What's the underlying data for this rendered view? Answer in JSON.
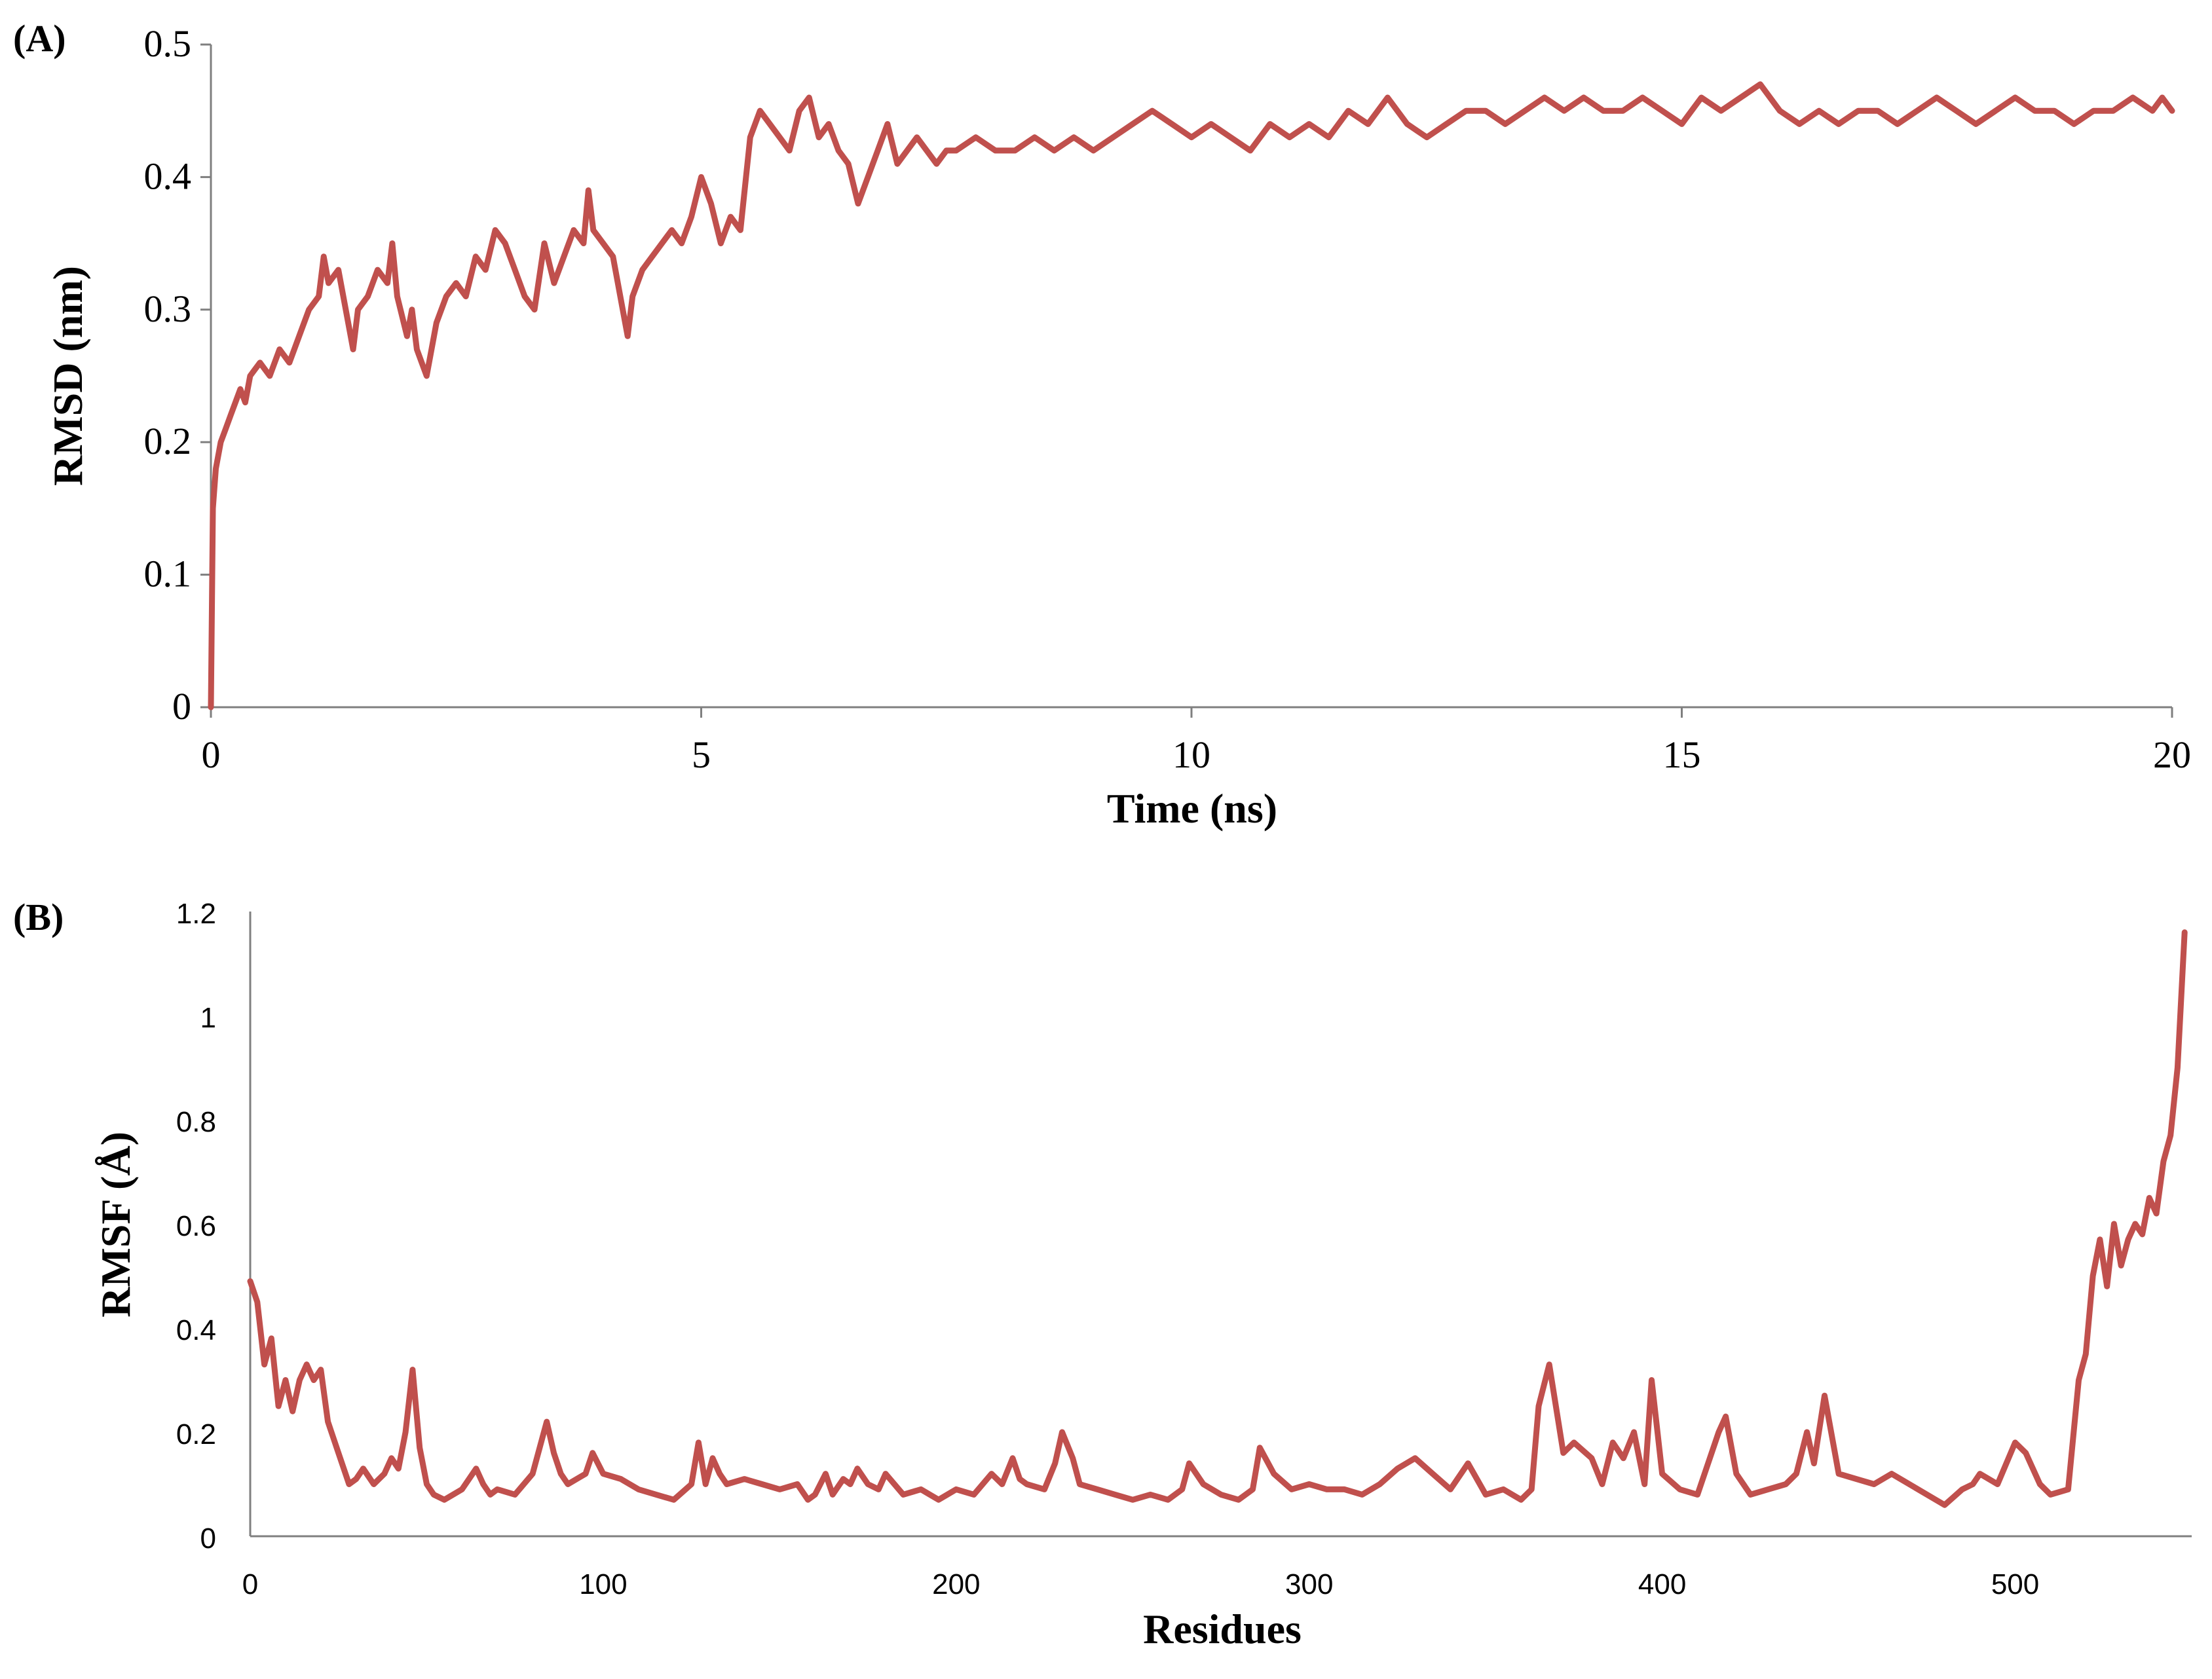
{
  "colors": {
    "series": "#c0504d",
    "axis": "#7f7f7f"
  },
  "chart_data": [
    {
      "type": "line",
      "panel_label": "(A)",
      "xlabel": "Time (ns)",
      "ylabel": "RMSD (nm)",
      "xlim": [
        0,
        20
      ],
      "ylim": [
        0,
        0.5
      ],
      "xticks": [
        0,
        5,
        10,
        15,
        20
      ],
      "yticks": [
        0,
        0.1,
        0.2,
        0.3,
        0.4,
        0.5
      ],
      "xtick_labels": [
        "0",
        "5",
        "10",
        "15",
        "20"
      ],
      "ytick_labels": [
        "0",
        "0.1",
        "0.2",
        "0.3",
        "0.4",
        "0.5"
      ],
      "series": [
        {
          "name": "RMSD",
          "x": [
            0,
            0.02,
            0.05,
            0.1,
            0.15,
            0.2,
            0.25,
            0.3,
            0.35,
            0.4,
            0.5,
            0.6,
            0.7,
            0.8,
            0.9,
            1.0,
            1.1,
            1.15,
            1.2,
            1.3,
            1.4,
            1.45,
            1.5,
            1.6,
            1.7,
            1.8,
            1.85,
            1.9,
            2.0,
            2.05,
            2.1,
            2.2,
            2.3,
            2.4,
            2.5,
            2.6,
            2.7,
            2.8,
            2.9,
            3.0,
            3.1,
            3.2,
            3.3,
            3.4,
            3.5,
            3.6,
            3.7,
            3.8,
            3.85,
            3.9,
            4.0,
            4.1,
            4.2,
            4.25,
            4.3,
            4.4,
            4.5,
            4.6,
            4.7,
            4.8,
            4.9,
            5.0,
            5.1,
            5.2,
            5.3,
            5.4,
            5.5,
            5.6,
            5.7,
            5.8,
            5.9,
            6.0,
            6.1,
            6.2,
            6.3,
            6.4,
            6.5,
            6.6,
            6.7,
            6.8,
            6.9,
            7.0,
            7.1,
            7.2,
            7.3,
            7.4,
            7.5,
            7.6,
            7.8,
            8.0,
            8.2,
            8.4,
            8.6,
            8.8,
            9.0,
            9.2,
            9.4,
            9.6,
            9.8,
            10.0,
            10.2,
            10.4,
            10.6,
            10.8,
            11.0,
            11.2,
            11.4,
            11.6,
            11.8,
            12.0,
            12.2,
            12.4,
            12.6,
            12.8,
            13.0,
            13.2,
            13.4,
            13.6,
            13.8,
            14.0,
            14.2,
            14.4,
            14.6,
            14.8,
            15.0,
            15.2,
            15.4,
            15.6,
            15.8,
            16.0,
            16.2,
            16.4,
            16.6,
            16.8,
            17.0,
            17.2,
            17.4,
            17.6,
            17.8,
            18.0,
            18.2,
            18.4,
            18.6,
            18.8,
            19.0,
            19.2,
            19.4,
            19.6,
            19.8,
            19.9,
            20.0
          ],
          "y": [
            0,
            0.15,
            0.18,
            0.2,
            0.21,
            0.22,
            0.23,
            0.24,
            0.23,
            0.25,
            0.26,
            0.25,
            0.27,
            0.26,
            0.28,
            0.3,
            0.31,
            0.34,
            0.32,
            0.33,
            0.29,
            0.27,
            0.3,
            0.31,
            0.33,
            0.32,
            0.35,
            0.31,
            0.28,
            0.3,
            0.27,
            0.25,
            0.29,
            0.31,
            0.32,
            0.31,
            0.34,
            0.33,
            0.36,
            0.35,
            0.33,
            0.31,
            0.3,
            0.35,
            0.32,
            0.34,
            0.36,
            0.35,
            0.39,
            0.36,
            0.35,
            0.34,
            0.3,
            0.28,
            0.31,
            0.33,
            0.34,
            0.35,
            0.36,
            0.35,
            0.37,
            0.4,
            0.38,
            0.35,
            0.37,
            0.36,
            0.43,
            0.45,
            0.44,
            0.43,
            0.42,
            0.45,
            0.46,
            0.43,
            0.44,
            0.42,
            0.41,
            0.38,
            0.4,
            0.42,
            0.44,
            0.41,
            0.42,
            0.43,
            0.42,
            0.41,
            0.42,
            0.42,
            0.43,
            0.42,
            0.42,
            0.43,
            0.42,
            0.43,
            0.42,
            0.43,
            0.44,
            0.45,
            0.44,
            0.43,
            0.44,
            0.43,
            0.42,
            0.44,
            0.43,
            0.44,
            0.43,
            0.45,
            0.44,
            0.46,
            0.44,
            0.43,
            0.44,
            0.45,
            0.45,
            0.44,
            0.45,
            0.46,
            0.45,
            0.46,
            0.45,
            0.45,
            0.46,
            0.45,
            0.44,
            0.46,
            0.45,
            0.46,
            0.47,
            0.45,
            0.44,
            0.45,
            0.44,
            0.45,
            0.45,
            0.44,
            0.45,
            0.46,
            0.45,
            0.44,
            0.45,
            0.46,
            0.45,
            0.45,
            0.44,
            0.45,
            0.45,
            0.46,
            0.45,
            0.46,
            0.45
          ]
        }
      ]
    },
    {
      "type": "line",
      "panel_label": "(B)",
      "xlabel": "Residues",
      "ylabel": "RMSF (Å)",
      "xlim": [
        0,
        550
      ],
      "ylim": [
        0,
        1.2
      ],
      "xticks": [
        0,
        100,
        200,
        300,
        400,
        500
      ],
      "yticks": [
        0,
        0.2,
        0.4,
        0.6,
        0.8,
        1.0,
        1.2
      ],
      "xtick_labels": [
        "0",
        "100",
        "200",
        "300",
        "400",
        "500"
      ],
      "ytick_labels": [
        "0",
        "0.2",
        "0.4",
        "0.6",
        "0.8",
        "1",
        "1.2"
      ],
      "series": [
        {
          "name": "RMSF",
          "x": [
            0,
            2,
            4,
            6,
            8,
            10,
            12,
            14,
            16,
            18,
            20,
            22,
            25,
            28,
            30,
            32,
            35,
            38,
            40,
            42,
            44,
            46,
            48,
            50,
            52,
            55,
            60,
            64,
            66,
            68,
            70,
            75,
            80,
            84,
            86,
            88,
            90,
            95,
            97,
            100,
            105,
            110,
            115,
            120,
            125,
            127,
            129,
            131,
            133,
            135,
            140,
            145,
            150,
            155,
            158,
            160,
            163,
            165,
            168,
            170,
            172,
            175,
            178,
            180,
            185,
            190,
            195,
            200,
            205,
            210,
            213,
            216,
            218,
            220,
            225,
            228,
            230,
            233,
            235,
            240,
            245,
            250,
            255,
            260,
            264,
            266,
            270,
            275,
            280,
            284,
            286,
            290,
            295,
            300,
            305,
            310,
            315,
            320,
            325,
            330,
            335,
            340,
            345,
            350,
            355,
            360,
            363,
            365,
            368,
            372,
            375,
            380,
            383,
            386,
            389,
            392,
            395,
            397,
            400,
            405,
            410,
            413,
            416,
            418,
            421,
            425,
            430,
            435,
            438,
            441,
            443,
            446,
            450,
            455,
            460,
            465,
            470,
            475,
            480,
            485,
            488,
            490,
            495,
            500,
            503,
            507,
            510,
            515,
            518,
            520,
            522,
            524,
            526,
            528,
            530,
            532,
            534,
            536,
            538,
            540,
            542,
            544,
            546,
            548
          ],
          "y": [
            0.49,
            0.45,
            0.33,
            0.38,
            0.25,
            0.3,
            0.24,
            0.3,
            0.33,
            0.3,
            0.32,
            0.22,
            0.16,
            0.1,
            0.11,
            0.13,
            0.1,
            0.12,
            0.15,
            0.13,
            0.2,
            0.32,
            0.17,
            0.1,
            0.08,
            0.07,
            0.09,
            0.13,
            0.1,
            0.08,
            0.09,
            0.08,
            0.12,
            0.22,
            0.16,
            0.12,
            0.1,
            0.12,
            0.16,
            0.12,
            0.11,
            0.09,
            0.08,
            0.07,
            0.1,
            0.18,
            0.1,
            0.15,
            0.12,
            0.1,
            0.11,
            0.1,
            0.09,
            0.1,
            0.07,
            0.08,
            0.12,
            0.08,
            0.11,
            0.1,
            0.13,
            0.1,
            0.09,
            0.12,
            0.08,
            0.09,
            0.07,
            0.09,
            0.08,
            0.12,
            0.1,
            0.15,
            0.11,
            0.1,
            0.09,
            0.14,
            0.2,
            0.15,
            0.1,
            0.09,
            0.08,
            0.07,
            0.08,
            0.07,
            0.09,
            0.14,
            0.1,
            0.08,
            0.07,
            0.09,
            0.17,
            0.12,
            0.09,
            0.1,
            0.09,
            0.09,
            0.08,
            0.1,
            0.13,
            0.15,
            0.12,
            0.09,
            0.14,
            0.08,
            0.09,
            0.07,
            0.09,
            0.25,
            0.33,
            0.16,
            0.18,
            0.15,
            0.1,
            0.18,
            0.15,
            0.2,
            0.1,
            0.3,
            0.12,
            0.09,
            0.08,
            0.14,
            0.2,
            0.23,
            0.12,
            0.08,
            0.09,
            0.1,
            0.12,
            0.2,
            0.14,
            0.27,
            0.12,
            0.11,
            0.1,
            0.12,
            0.1,
            0.08,
            0.06,
            0.09,
            0.1,
            0.12,
            0.1,
            0.18,
            0.16,
            0.1,
            0.08,
            0.09,
            0.3,
            0.35,
            0.5,
            0.57,
            0.48,
            0.6,
            0.52,
            0.57,
            0.6,
            0.58,
            0.65,
            0.62,
            0.72,
            0.77,
            0.9,
            1.16
          ]
        }
      ]
    }
  ]
}
